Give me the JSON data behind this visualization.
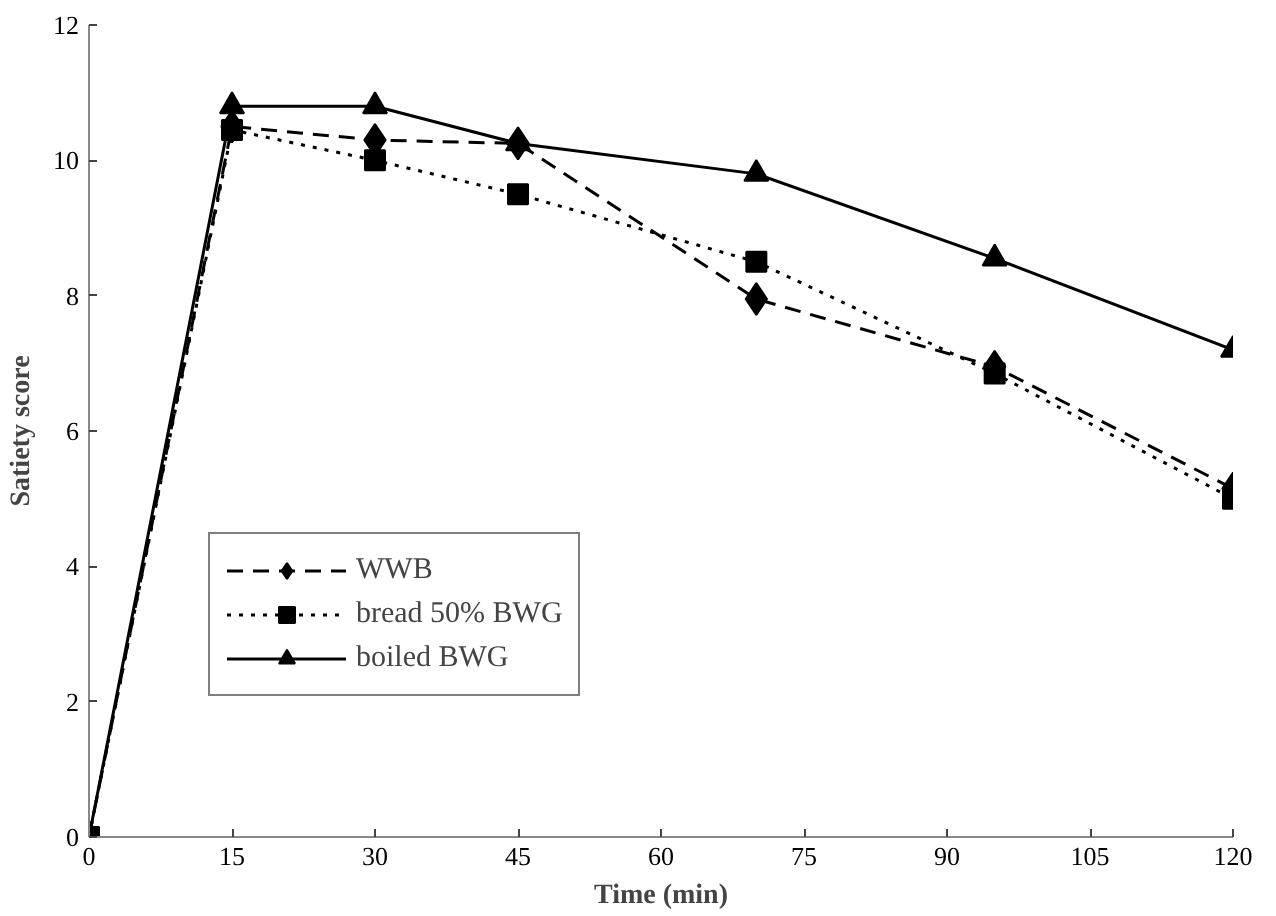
{
  "chart_data": {
    "type": "line",
    "xlabel": "Time (min)",
    "ylabel": "Satiety score",
    "x": [
      0,
      15,
      30,
      45,
      70,
      95,
      120
    ],
    "series": [
      {
        "name": "WWB",
        "color": "#000000",
        "marker": "diamond",
        "line_style": "dashed",
        "values": [
          0,
          10.5,
          10.3,
          10.25,
          7.95,
          6.95,
          5.15
        ]
      },
      {
        "name": "bread 50% BWG",
        "color": "#000000",
        "marker": "square",
        "line_style": "dotted",
        "values": [
          0,
          10.45,
          10.0,
          9.5,
          8.5,
          6.85,
          5.0
        ]
      },
      {
        "name": "boiled BWG",
        "color": "#000000",
        "marker": "triangle",
        "line_style": "solid",
        "values": [
          0,
          10.8,
          10.8,
          10.25,
          9.8,
          8.55,
          7.2
        ]
      }
    ],
    "xlim": [
      0,
      120
    ],
    "xticks": [
      0,
      15,
      30,
      45,
      60,
      75,
      90,
      105,
      120
    ],
    "ylim": [
      0,
      12
    ],
    "yticks": [
      0,
      2,
      4,
      6,
      8,
      10,
      12
    ],
    "grid": false,
    "legend": "left"
  }
}
